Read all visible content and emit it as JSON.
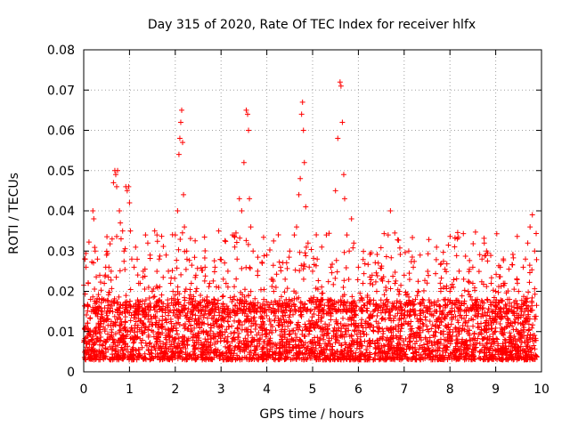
{
  "chart_data": {
    "type": "scatter",
    "title": "Day 315 of 2020, Rate Of TEC Index for receiver hlfx",
    "xlabel": "GPS time / hours",
    "ylabel": "ROTI / TECUs",
    "xlim": [
      0,
      10
    ],
    "ylim": [
      0,
      0.08
    ],
    "xticks": [
      "0",
      "1",
      "2",
      "3",
      "4",
      "5",
      "6",
      "7",
      "8",
      "9",
      "10"
    ],
    "yticks": [
      "0",
      "0.01",
      "0.02",
      "0.03",
      "0.04",
      "0.05",
      "0.06",
      "0.07",
      "0.08"
    ],
    "grid": true,
    "marker": "+",
    "color": "#ff0000",
    "series": [
      {
        "name": "ROTI",
        "points": [
          [
            0.05,
            0.026
          ],
          [
            0.1,
            0.022
          ],
          [
            0.15,
            0.018
          ],
          [
            0.2,
            0.016
          ],
          [
            0.25,
            0.03
          ],
          [
            0.2,
            0.04
          ],
          [
            0.22,
            0.038
          ],
          [
            0.3,
            0.028
          ],
          [
            0.35,
            0.024
          ],
          [
            0.45,
            0.022
          ],
          [
            0.5,
            0.029
          ],
          [
            0.55,
            0.026
          ],
          [
            0.6,
            0.025
          ],
          [
            0.62,
            0.033
          ],
          [
            0.65,
            0.047
          ],
          [
            0.68,
            0.05
          ],
          [
            0.7,
            0.049
          ],
          [
            0.72,
            0.046
          ],
          [
            0.74,
            0.05
          ],
          [
            0.78,
            0.04
          ],
          [
            0.8,
            0.037
          ],
          [
            0.85,
            0.035
          ],
          [
            0.88,
            0.03
          ],
          [
            0.92,
            0.046
          ],
          [
            0.95,
            0.045
          ],
          [
            0.98,
            0.046
          ],
          [
            1.0,
            0.042
          ],
          [
            1.02,
            0.035
          ],
          [
            1.05,
            0.028
          ],
          [
            1.1,
            0.026
          ],
          [
            1.2,
            0.022
          ],
          [
            1.3,
            0.025
          ],
          [
            1.35,
            0.034
          ],
          [
            1.4,
            0.032
          ],
          [
            1.45,
            0.029
          ],
          [
            1.55,
            0.035
          ],
          [
            1.6,
            0.034
          ],
          [
            1.65,
            0.028
          ],
          [
            1.8,
            0.029
          ],
          [
            1.85,
            0.025
          ],
          [
            1.9,
            0.022
          ],
          [
            1.95,
            0.02
          ],
          [
            2.0,
            0.034
          ],
          [
            2.05,
            0.04
          ],
          [
            2.08,
            0.054
          ],
          [
            2.1,
            0.058
          ],
          [
            2.12,
            0.062
          ],
          [
            2.14,
            0.065
          ],
          [
            2.16,
            0.057
          ],
          [
            2.18,
            0.044
          ],
          [
            2.2,
            0.036
          ],
          [
            2.25,
            0.03
          ],
          [
            2.35,
            0.022
          ],
          [
            2.45,
            0.024
          ],
          [
            2.55,
            0.019
          ],
          [
            2.65,
            0.026
          ],
          [
            2.75,
            0.022
          ],
          [
            2.85,
            0.018
          ],
          [
            2.95,
            0.021
          ],
          [
            3.05,
            0.023
          ],
          [
            3.15,
            0.025
          ],
          [
            3.25,
            0.034
          ],
          [
            3.3,
            0.031
          ],
          [
            3.35,
            0.028
          ],
          [
            3.4,
            0.043
          ],
          [
            3.45,
            0.04
          ],
          [
            3.5,
            0.052
          ],
          [
            3.55,
            0.065
          ],
          [
            3.58,
            0.064
          ],
          [
            3.6,
            0.06
          ],
          [
            3.62,
            0.043
          ],
          [
            3.65,
            0.036
          ],
          [
            3.7,
            0.03
          ],
          [
            3.8,
            0.025
          ],
          [
            3.9,
            0.027
          ],
          [
            4.0,
            0.029
          ],
          [
            4.1,
            0.023
          ],
          [
            4.2,
            0.021
          ],
          [
            4.3,
            0.026
          ],
          [
            4.4,
            0.023
          ],
          [
            4.5,
            0.03
          ],
          [
            4.6,
            0.034
          ],
          [
            4.65,
            0.036
          ],
          [
            4.7,
            0.044
          ],
          [
            4.73,
            0.048
          ],
          [
            4.76,
            0.064
          ],
          [
            4.78,
            0.067
          ],
          [
            4.8,
            0.06
          ],
          [
            4.82,
            0.052
          ],
          [
            4.85,
            0.041
          ],
          [
            4.9,
            0.032
          ],
          [
            5.0,
            0.025
          ],
          [
            5.1,
            0.028
          ],
          [
            5.2,
            0.031
          ],
          [
            5.3,
            0.034
          ],
          [
            5.4,
            0.026
          ],
          [
            5.5,
            0.045
          ],
          [
            5.55,
            0.058
          ],
          [
            5.6,
            0.072
          ],
          [
            5.62,
            0.071
          ],
          [
            5.65,
            0.062
          ],
          [
            5.68,
            0.049
          ],
          [
            5.7,
            0.043
          ],
          [
            5.75,
            0.034
          ],
          [
            5.8,
            0.03
          ],
          [
            5.85,
            0.038
          ],
          [
            5.9,
            0.032
          ],
          [
            6.0,
            0.026
          ],
          [
            6.1,
            0.022
          ],
          [
            6.2,
            0.019
          ],
          [
            6.3,
            0.024
          ],
          [
            6.4,
            0.02
          ],
          [
            6.5,
            0.023
          ],
          [
            6.6,
            0.021
          ],
          [
            6.65,
            0.034
          ],
          [
            6.7,
            0.04
          ],
          [
            6.8,
            0.022
          ],
          [
            6.9,
            0.02
          ],
          [
            7.0,
            0.024
          ],
          [
            7.1,
            0.03
          ],
          [
            7.2,
            0.026
          ],
          [
            7.3,
            0.02
          ],
          [
            7.4,
            0.018
          ],
          [
            7.5,
            0.016
          ],
          [
            7.6,
            0.017
          ],
          [
            7.7,
            0.015
          ],
          [
            7.8,
            0.02
          ],
          [
            7.9,
            0.018
          ],
          [
            8.0,
            0.02
          ],
          [
            8.1,
            0.017
          ],
          [
            8.2,
            0.025
          ],
          [
            8.3,
            0.023
          ],
          [
            8.4,
            0.02
          ],
          [
            8.5,
            0.022
          ],
          [
            8.6,
            0.018
          ],
          [
            8.7,
            0.028
          ],
          [
            8.75,
            0.032
          ],
          [
            8.8,
            0.03
          ],
          [
            8.9,
            0.022
          ],
          [
            9.0,
            0.02
          ],
          [
            9.1,
            0.026
          ],
          [
            9.2,
            0.022
          ],
          [
            9.3,
            0.018
          ],
          [
            9.4,
            0.016
          ],
          [
            9.5,
            0.02
          ],
          [
            9.6,
            0.026
          ],
          [
            9.65,
            0.028
          ],
          [
            9.7,
            0.032
          ],
          [
            9.75,
            0.036
          ],
          [
            9.8,
            0.039
          ],
          [
            9.85,
            0.03
          ]
        ],
        "dense_band": {
          "description": "many points at every time step",
          "x_range": [
            0,
            9.9
          ],
          "y_range": [
            0.003,
            0.018
          ]
        }
      }
    ]
  }
}
